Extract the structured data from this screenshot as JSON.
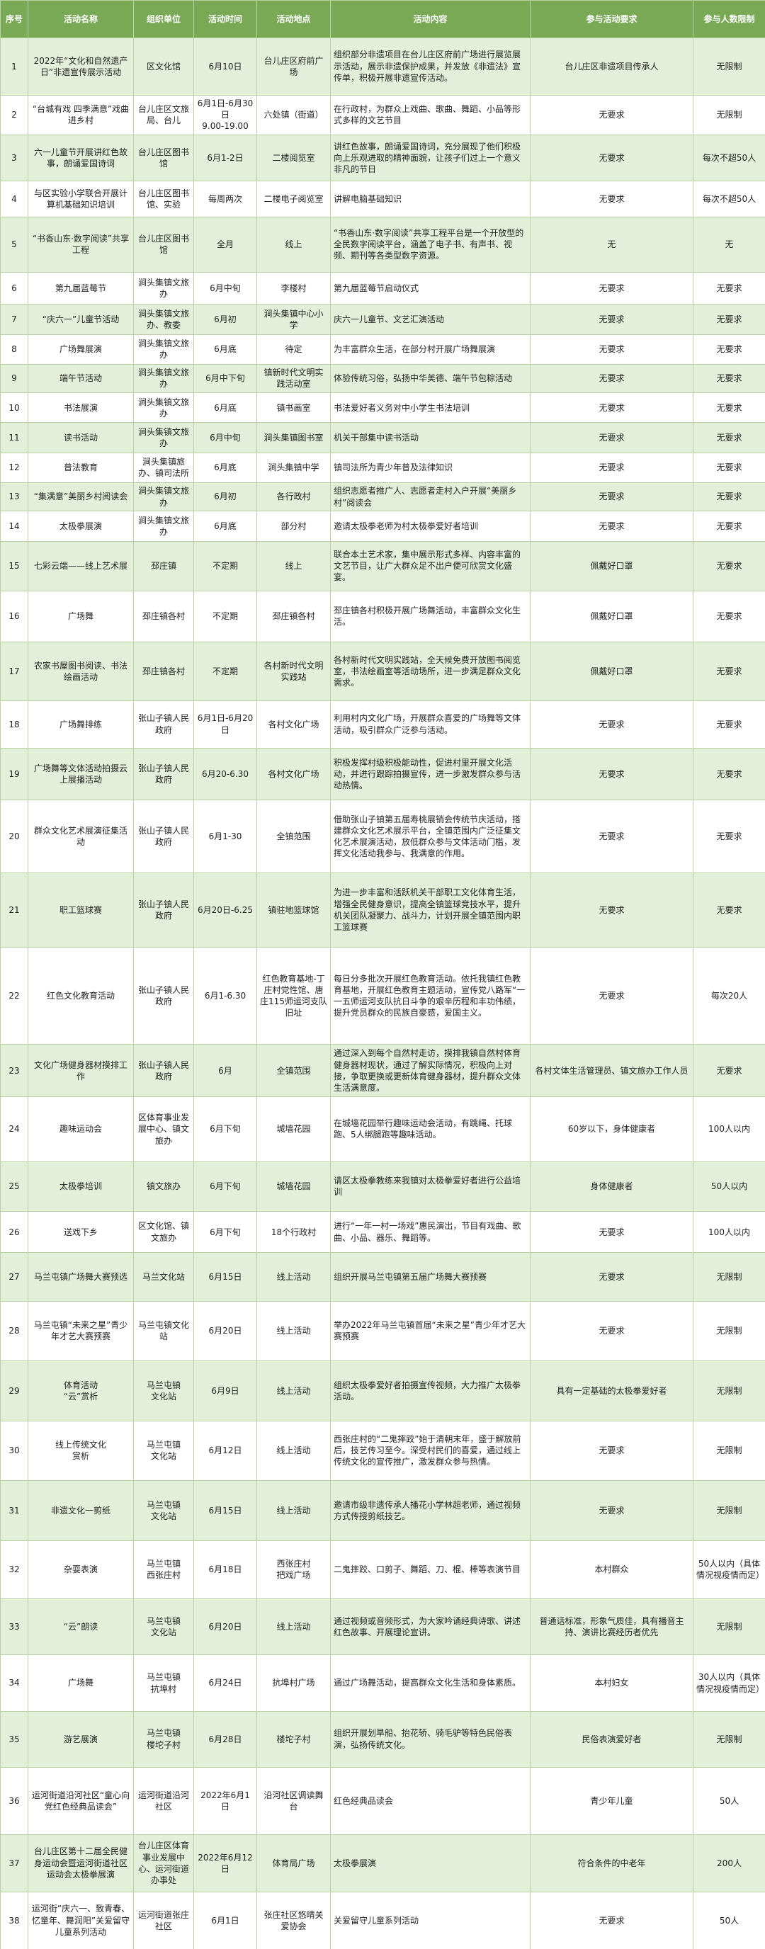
{
  "table": {
    "header": [
      "序号",
      "活动名称",
      "组织单位",
      "活动时间",
      "活动地点",
      "活动内容",
      "参与活动要求",
      "参与人数限制"
    ],
    "rows": [
      [
        1,
        "2022年“文化和自然遗产日”非遗宣传展示活动",
        "区文化馆",
        "6月10日",
        "台儿庄区府前广场",
        "组织部分非遗项目在台儿庄区府前广场进行展览展示活动，展示非遗保护成果，并发放《非遗法》宣传单，积极开展非遗宣传活动。",
        "台儿庄区非遗项目传承人",
        "无限制"
      ],
      [
        2,
        "“台城有戏 四季满意”戏曲进乡村",
        "台儿庄区文旅局、台儿",
        "6月1日-6月30日\n9.00-19.00",
        "六处镇（街道）",
        "在行政村，为群众上戏曲、歌曲、舞蹈、小品等形式多样的文艺节目",
        "无要求",
        "无限制"
      ],
      [
        3,
        "六一儿童节开展讲红色故事，朗诵爱国诗词",
        "台儿庄区图书馆",
        "6月1-2日",
        "二楼阅览室",
        "讲红色故事，朗诵爱国诗词，充分展现了他们积极向上乐观进取的精神面貌，让孩子们过上一个意义非凡的节日",
        "无要求",
        "每次不超50人"
      ],
      [
        4,
        "与区实验小学联合开展计算机基础知识培训",
        "台儿庄区图书馆、实验",
        "每周两次",
        "二楼电子阅览室",
        "讲解电脑基础知识",
        "无要求",
        "每次不超50人"
      ],
      [
        5,
        "“书香山东·数字阅读”共享工程",
        "台儿庄区图书馆",
        "全月",
        "线上",
        "“书香山东·数字阅读”共享工程平台是一个开放型的全民数字阅读平台，涵盖了电子书、有声书、视频、期刊等各类型数字资源。",
        "无",
        "无"
      ],
      [
        6,
        "第九届蓝莓节",
        "涧头集镇文旅办",
        "6月中旬",
        "李楼村",
        "第九届蓝莓节启动仪式",
        "无要求",
        "无要求"
      ],
      [
        7,
        "“庆六一”儿童节活动",
        "涧头集镇文旅办、教委",
        "6月初",
        "涧头集镇中心小学",
        "庆六一儿童节、文艺汇演活动",
        "无要求",
        "无要求"
      ],
      [
        8,
        "广场舞展演",
        "涧头集镇文旅办",
        "6月底",
        "待定",
        "为丰富群众生活，在部分村开展广场舞展演",
        "无要求",
        "无要求"
      ],
      [
        9,
        "端午节活动",
        "涧头集镇文旅办",
        "6月中下旬",
        "镇新时代文明实践活动室",
        "体验传统习俗，弘扬中华美德、端午节包粽活动",
        "无要求",
        "无要求"
      ],
      [
        10,
        "书法展演",
        "涧头集镇文旅办",
        "6月底",
        "镇书画室",
        "书法爱好者义务对中小学生书法培训",
        "无要求",
        "无要求"
      ],
      [
        11,
        "读书活动",
        "涧头集镇文旅办",
        "6月中旬",
        "涧头集镇图书室",
        "机关干部集中读书活动",
        "无要求",
        "无要求"
      ],
      [
        12,
        "普法教育",
        "涧头集镇旅办、镇司法所",
        "6月底",
        "涧头集镇中学",
        "镇司法所为青少年普及法律知识",
        "无要求",
        "无要求"
      ],
      [
        13,
        "“集满意”美丽乡村阅读会",
        "涧头集镇文旅办",
        "6月初",
        "各行政村",
        "组织志愿者推广人、志愿者走村入户开展“美丽乡村”阅读会",
        "无要求",
        "无要求"
      ],
      [
        14,
        "太极拳展演",
        "涧头集镇文旅办",
        "6月底",
        "部分村",
        "邀请太极拳老师为村太极拳爱好者培训",
        "无要求",
        "无要求"
      ],
      [
        15,
        "七彩云端——线上艺术展",
        "邳庄镇",
        "不定期",
        "线上",
        "联合本土艺术家，集中展示形式多样、内容丰富的文艺节目，让广大群众足不出户便可欣赏文化盛宴。",
        "佩戴好口罩",
        "无要求"
      ],
      [
        16,
        "广场舞",
        "邳庄镇各村",
        "不定期",
        "邳庄镇各村",
        "邳庄镇各村积极开展广场舞活动，丰富群众文化生活。",
        "佩戴好口罩",
        "无要求"
      ],
      [
        17,
        "农家书屋图书阅读、书法绘画活动",
        "邳庄镇各村",
        "不定期",
        "各村新时代文明实践站",
        "各村新时代文明实践站，全天候免费开放图书阅览室，书法绘画室等活动场所，进一步满足群众文化需求。",
        "佩戴好口罩",
        "无要求"
      ],
      [
        18,
        "广场舞排练",
        "张山子镇人民政府",
        "6月1日-6月20日",
        "各村文化广场",
        "利用村内文化广场，开展群众喜爱的广场舞等文体活动，吸引群众广泛参与活动。",
        "无要求",
        "无要求"
      ],
      [
        19,
        "广场舞等文体活动拍摄云上展播活动",
        "张山子镇人民政府",
        "6月20-6.30",
        "各村文化广场",
        "积极发挥村级积极能动性，促进村里开展文化活动，并进行跟踪拍摄宣传，进一步激发群众参与活动热情。",
        "无要求",
        "无要求"
      ],
      [
        20,
        "群众文化艺术展演征集活动",
        "张山子镇人民政府",
        "6月1-30",
        "全镇范围",
        "借助张山子镇第五届寿桃展销会传统节庆活动，搭建群众文化艺术展示平台，全镇范围内广泛征集文化艺术展演活动，放低群众参与文体活动门槛，发挥文化活动我参与、我满意的作用。",
        "无要求",
        "无要求"
      ],
      [
        21,
        "职工篮球赛",
        "张山子镇人民政府",
        "6月20日-6.25",
        "镇驻地篮球馆",
        "为进一步丰富和活跃机关干部职工文化体育生活，增强全民健身意识，提高全镇篮球竞技水平，提升机关团队凝聚力、战斗力，计划开展全镇范围内职工篮球赛",
        "无要求",
        "无要求"
      ],
      [
        22,
        "红色文化教育活动",
        "张山子镇人民政府",
        "6月1-6.30",
        "红色教育基地-丁庄村党性馆、唐庄115师运河支队旧址",
        "每日分多批次开展红色教育活动。依托我镇红色教育基地，开展红色教育主题活动，宣传党八路军“一一五师运河支队抗日斗争的艰辛历程和丰功伟绩，提升党员群众的民族自豪感，爱国主义。",
        "无要求",
        "每次20人"
      ],
      [
        23,
        "文化广场健身器材摸排工作",
        "张山子镇人民政府",
        "6月",
        "全镇范围",
        "通过深入到每个自然村走访，摸排我镇自然村体育健身器材现状，通过了解实际情况，积极向上对接，争取更换或更新体育健身器材，提升群众文体生活满意度。",
        "各村文体生活管理员、镇文旅办工作人员",
        "无要求"
      ],
      [
        24,
        "趣味运动会",
        "区体育事业发展中心、镇文旅办",
        "6月下旬",
        "城墙花园",
        "在城墙花园举行趣味运动会活动，有跳绳、托球跑、5人绑腿跑等趣味活动。",
        "60岁以下，身体健康者",
        "100人以内"
      ],
      [
        25,
        "太极拳培训",
        "镇文旅办",
        "6月下旬",
        "城墙花园",
        "请区太极拳教练来我镇对太极拳爱好者进行公益培训",
        "身体健康者",
        "50人以内"
      ],
      [
        26,
        "送戏下乡",
        "区文化馆、镇文旅办",
        "6月下旬",
        "18个行政村",
        "进行“一年一村一场戏”惠民演出，节目有戏曲、歌曲、小品、器乐、舞蹈等。",
        "无要求",
        "100人以内"
      ],
      [
        27,
        "马兰屯镇广场舞大赛预选",
        "马兰文化站",
        "6月15日",
        "线上活动",
        "组织开展马兰屯镇第五届广场舞大赛预赛",
        "无要求",
        "无限制"
      ],
      [
        28,
        "马兰屯镇“未来之星”青少年才艺大赛预赛",
        "马兰屯镇文化站",
        "6月20日",
        "线上活动",
        "举办2022年马兰屯镇首届“未来之星”青少年才艺大赛预赛",
        "无要求",
        "无限制"
      ],
      [
        29,
        "体育活动\n“云”赏析",
        "马兰屯镇\n文化站",
        "6月9日",
        "线上活动",
        "组织太极拳爱好者拍摄宣传视频，大力推广太极拳活动。",
        "具有一定基础的太极拳爱好者",
        "无限制"
      ],
      [
        30,
        "线上传统文化\n赏析",
        "马兰屯镇\n文化站",
        "6月12日",
        "线上活动",
        "西张庄村的“二鬼摔跤”始于清朝末年，盛于解放前后，技艺传习至今。深受村民们的喜爱，通过线上传统文化的宣传推广，激发群众参与热情。",
        "无要求",
        "无限制"
      ],
      [
        31,
        "非遗文化一剪纸",
        "马兰屯镇\n文化站",
        "6月15日",
        "线上活动",
        "邀请市级非遗传承人播花小学林超老师，通过视频方式传授剪纸技艺。",
        "无要求",
        "无限制"
      ],
      [
        32,
        "杂耍表演",
        "马兰屯镇\n西张庄村",
        "6月18日",
        "西张庄村\n把戏广场",
        "二鬼摔跤、口剪子、舞蹈、刀、棍、棒等表演节目",
        "本村群众",
        "50人以内（具体情况视疫情而定）"
      ],
      [
        33,
        "“云”朗读",
        "马兰屯镇\n文化站",
        "6月20日",
        "线上活动",
        "通过视频或音频形式，为大家吟诵经典诗歌、讲述红色故事、开展理论宣讲。",
        "普通话标准，形象气质佳，具有播音主持、演讲比赛经历者优先",
        "无限制"
      ],
      [
        34,
        "广场舞",
        "马兰屯镇\n抗埠村",
        "6月24日",
        "抗埠村广场",
        "通过广场舞活动，提高群众文化生活和身体素质。",
        "本村妇女",
        "30人以内（具体情况视疫情而定）"
      ],
      [
        35,
        "游艺展演",
        "马兰屯镇\n楼坨子村",
        "6月28日",
        "楼坨子村",
        "组织开展划旱船、抬花轿、骑毛驴等特色民俗表演，弘扬传统文化。",
        "民俗表演爱好者",
        "无限制"
      ],
      [
        36,
        "运河街道沿河社区“童心向党红色经典品读会”",
        "运河街道沿河社区",
        "2022年6月1日",
        "沿河社区调读舞台",
        "红色经典品读会",
        "青少年儿童",
        "50人"
      ],
      [
        37,
        "台儿庄区第十二届全民健身运动会暨运河街道社区运动会太极拳展演",
        "台儿庄区体育事业发展中心、运河街道办事处",
        "2022年6月12日",
        "体育局广场",
        "太极拳展演",
        "符合条件的中老年",
        "200人"
      ],
      [
        38,
        "运河街“庆六一、致青春、忆童年、舞润阳”关爱留守儿童系列活动",
        "运河街道张庄社区",
        "6月1日",
        "张庄社区悠晴关爱协会",
        "关爱留守儿童系列活动",
        "无要求",
        "50人"
      ]
    ]
  }
}
